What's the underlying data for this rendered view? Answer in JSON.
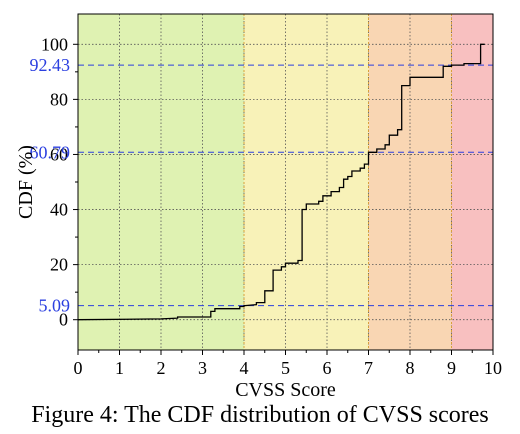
{
  "chart_data": {
    "type": "line",
    "xlabel": "CVSS Score",
    "ylabel": "CDF (%)",
    "xlim": [
      0,
      10
    ],
    "ylim": [
      -11,
      111
    ],
    "x_ticks": [
      0,
      1,
      2,
      3,
      4,
      5,
      6,
      7,
      8,
      9,
      10
    ],
    "x_tick_labels": [
      "0",
      "1",
      "2",
      "3",
      "4",
      "5",
      "6",
      "7",
      "8",
      "9",
      "10"
    ],
    "y_ticks": [
      0,
      20,
      40,
      60,
      80,
      100
    ],
    "y_tick_labels": [
      "0",
      "20",
      "40",
      "60",
      "80",
      "100"
    ],
    "grid": true,
    "severity_bands": [
      {
        "from": 0,
        "to": 4,
        "color": "#dff2b2",
        "edge": "#d9a13b"
      },
      {
        "from": 4,
        "to": 7,
        "color": "#f8f2b8",
        "edge": "#d9a13b"
      },
      {
        "from": 7,
        "to": 9,
        "color": "#f9d6b3",
        "edge": "#d9a13b"
      },
      {
        "from": 9,
        "to": 10,
        "color": "#f8c0c0",
        "edge": "#d9a13b"
      }
    ],
    "reference_lines": [
      {
        "value": 5.09,
        "label": "5.09",
        "color": "#2b3fe0"
      },
      {
        "value": 60.79,
        "label": "60.79",
        "color": "#2b3fe0"
      },
      {
        "value": 92.43,
        "label": "92.43",
        "color": "#2b3fe0"
      }
    ],
    "series": [
      {
        "color": "#000000",
        "x": [
          0,
          2.0,
          2.4,
          2.4,
          3.2,
          3.2,
          3.3,
          3.3,
          3.9,
          3.9,
          4.0,
          4.0,
          4.3,
          4.3,
          4.5,
          4.5,
          4.7,
          4.7,
          4.9,
          4.9,
          5.0,
          5.0,
          5.3,
          5.3,
          5.4,
          5.4,
          5.5,
          5.5,
          5.8,
          5.8,
          5.9,
          5.9,
          6.1,
          6.1,
          6.3,
          6.3,
          6.4,
          6.4,
          6.5,
          6.5,
          6.6,
          6.6,
          6.8,
          6.8,
          6.9,
          6.9,
          7.0,
          7.0,
          7.2,
          7.2,
          7.4,
          7.4,
          7.5,
          7.5,
          7.7,
          7.7,
          7.8,
          7.8,
          8.0,
          8.0,
          8.8,
          8.8,
          9.0,
          9.0,
          9.3,
          9.3,
          9.7,
          9.7,
          9.8
        ],
        "y": [
          0,
          0.3,
          0.6,
          1.0,
          1.0,
          3.0,
          3.0,
          4.0,
          4.0,
          4.8,
          4.8,
          5.09,
          5.5,
          6.2,
          6.2,
          10.5,
          10.5,
          18.0,
          18.0,
          19.2,
          19.2,
          20.5,
          20.5,
          21.5,
          21.5,
          40.0,
          40.0,
          42.0,
          42.0,
          43.0,
          43.0,
          45.0,
          45.0,
          46.5,
          46.5,
          48.0,
          48.0,
          51.0,
          51.0,
          52.0,
          52.0,
          54.0,
          54.0,
          55.0,
          55.0,
          56.5,
          56.5,
          60.79,
          60.79,
          62.0,
          62.0,
          63.5,
          63.5,
          67.0,
          67.0,
          69.0,
          69.0,
          85.0,
          85.0,
          88.0,
          88.0,
          92.0,
          92.0,
          92.43,
          92.43,
          93.0,
          93.0,
          100,
          100
        ]
      }
    ]
  },
  "caption": "Figure 4: The CDF distribution of CVSS scores"
}
